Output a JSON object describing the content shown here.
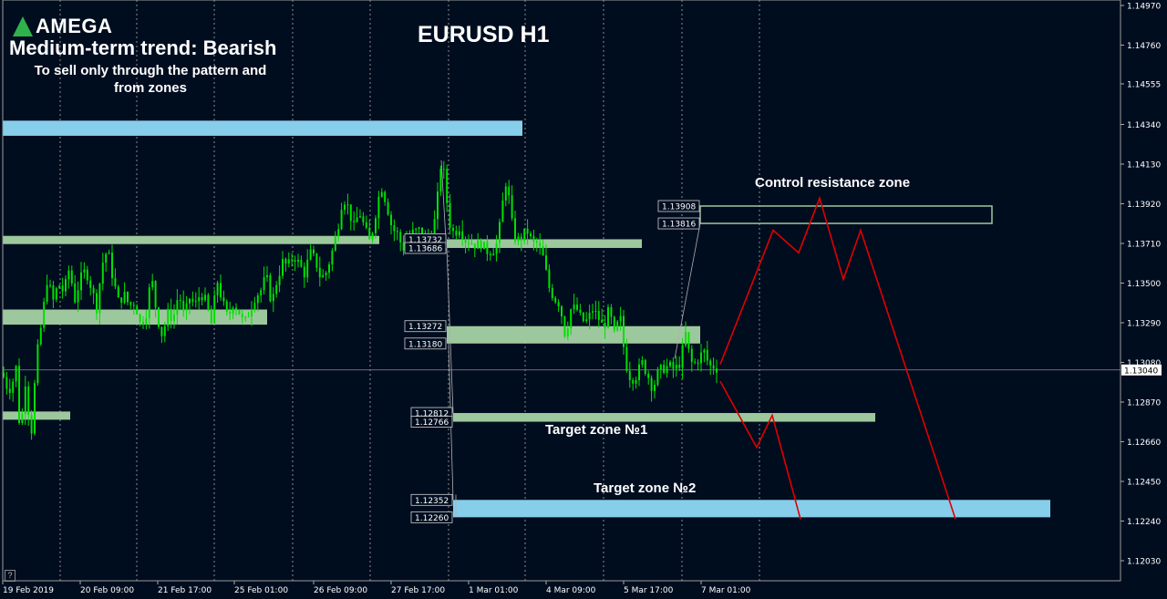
{
  "brand": "AMEGA",
  "headline": "Medium-term trend: Bearish",
  "note_line1": "To sell only through the pattern and",
  "note_line2": "from zones",
  "chart_title": "EURUSD H1",
  "zone_labels": {
    "control": "Control resistance zone",
    "target1": "Target zone №1",
    "target2": "Target zone №2"
  },
  "colors": {
    "background": "#000d1f",
    "candle": "#00e000",
    "zone_blue": "#87ceeb",
    "zone_green": "#9dc89d",
    "forecast": "#e00000",
    "grid": "#8a8a8a"
  },
  "chart_data": {
    "type": "candlestick",
    "symbol": "EURUSD",
    "timeframe": "H1",
    "ylim": [
      1.1195,
      1.1502
    ],
    "y_ticks": [
      "1.14970",
      "1.14760",
      "1.14555",
      "1.14340",
      "1.14130",
      "1.13920",
      "1.13710",
      "1.13500",
      "1.13290",
      "1.13080",
      "1.12870",
      "1.12660",
      "1.12450",
      "1.12240",
      "1.12030"
    ],
    "x_ticks": [
      "19 Feb 2019",
      "20 Feb 09:00",
      "21 Feb 17:00",
      "25 Feb 01:00",
      "26 Feb 09:00",
      "27 Feb 17:00",
      "1 Mar 01:00",
      "4 Mar 09:00",
      "5 Mar 17:00",
      "7 Mar 01:00"
    ],
    "current_price": "1.13040",
    "price_path": [
      [
        0,
        1.1309
      ],
      [
        6,
        1.1296
      ],
      [
        12,
        1.1294
      ],
      [
        18,
        1.1306
      ],
      [
        22,
        1.1268
      ],
      [
        28,
        1.1299
      ],
      [
        34,
        1.1268
      ],
      [
        40,
        1.131
      ],
      [
        46,
        1.133
      ],
      [
        52,
        1.1353
      ],
      [
        58,
        1.134
      ],
      [
        64,
        1.135
      ],
      [
        70,
        1.1345
      ],
      [
        76,
        1.1358
      ],
      [
        82,
        1.1341
      ],
      [
        88,
        1.1352
      ],
      [
        94,
        1.1357
      ],
      [
        100,
        1.1348
      ],
      [
        106,
        1.1337
      ],
      [
        112,
        1.136
      ],
      [
        118,
        1.1368
      ],
      [
        124,
        1.1352
      ],
      [
        130,
        1.134
      ],
      [
        136,
        1.1344
      ],
      [
        142,
        1.1338
      ],
      [
        148,
        1.134
      ],
      [
        154,
        1.1328
      ],
      [
        160,
        1.1333
      ],
      [
        166,
        1.1354
      ],
      [
        172,
        1.1333
      ],
      [
        178,
        1.1322
      ],
      [
        184,
        1.1334
      ],
      [
        190,
        1.1331
      ],
      [
        196,
        1.1345
      ],
      [
        202,
        1.1332
      ],
      [
        208,
        1.1342
      ],
      [
        214,
        1.1338
      ],
      [
        220,
        1.1345
      ],
      [
        226,
        1.134
      ],
      [
        232,
        1.1328
      ],
      [
        238,
        1.1352
      ],
      [
        244,
        1.134
      ],
      [
        250,
        1.1331
      ],
      [
        256,
        1.134
      ],
      [
        262,
        1.1335
      ],
      [
        268,
        1.1328
      ],
      [
        274,
        1.1336
      ],
      [
        280,
        1.1343
      ],
      [
        286,
        1.1346
      ],
      [
        292,
        1.1354
      ],
      [
        298,
        1.1339
      ],
      [
        304,
        1.1352
      ],
      [
        310,
        1.1361
      ],
      [
        316,
        1.1359
      ],
      [
        322,
        1.1365
      ],
      [
        328,
        1.136
      ],
      [
        334,
        1.1355
      ],
      [
        340,
        1.1366
      ],
      [
        346,
        1.1362
      ],
      [
        352,
        1.1352
      ],
      [
        358,
        1.1356
      ],
      [
        364,
        1.1366
      ],
      [
        370,
        1.1378
      ],
      [
        376,
        1.1396
      ],
      [
        382,
        1.139
      ],
      [
        388,
        1.1379
      ],
      [
        394,
        1.1388
      ],
      [
        400,
        1.1379
      ],
      [
        406,
        1.1371
      ],
      [
        412,
        1.1387
      ],
      [
        418,
        1.1402
      ],
      [
        424,
        1.1392
      ],
      [
        430,
        1.1379
      ],
      [
        436,
        1.1376
      ],
      [
        442,
        1.1368
      ],
      [
        448,
        1.1375
      ],
      [
        454,
        1.1377
      ],
      [
        460,
        1.1378
      ],
      [
        466,
        1.1375
      ],
      [
        472,
        1.1372
      ],
      [
        478,
        1.1386
      ],
      [
        484,
        1.1415
      ],
      [
        488,
        1.1405
      ],
      [
        492,
        1.1383
      ],
      [
        498,
        1.1376
      ],
      [
        504,
        1.138
      ],
      [
        510,
        1.1373
      ],
      [
        516,
        1.1372
      ],
      [
        522,
        1.137
      ],
      [
        528,
        1.1371
      ],
      [
        534,
        1.1367
      ],
      [
        540,
        1.1367
      ],
      [
        546,
        1.1372
      ],
      [
        552,
        1.1395
      ],
      [
        556,
        1.1407
      ],
      [
        560,
        1.1385
      ],
      [
        566,
        1.1372
      ],
      [
        572,
        1.1374
      ],
      [
        578,
        1.1378
      ],
      [
        584,
        1.1371
      ],
      [
        590,
        1.1371
      ],
      [
        596,
        1.1363
      ],
      [
        602,
        1.1348
      ],
      [
        608,
        1.1342
      ],
      [
        614,
        1.1339
      ],
      [
        620,
        1.1322
      ],
      [
        626,
        1.1336
      ],
      [
        632,
        1.1337
      ],
      [
        638,
        1.133
      ],
      [
        644,
        1.133
      ],
      [
        650,
        1.1336
      ],
      [
        656,
        1.1332
      ],
      [
        662,
        1.1326
      ],
      [
        668,
        1.1336
      ],
      [
        674,
        1.1322
      ],
      [
        680,
        1.1333
      ],
      [
        686,
        1.1308
      ],
      [
        692,
        1.1299
      ],
      [
        698,
        1.1301
      ],
      [
        704,
        1.1308
      ],
      [
        710,
        1.1302
      ],
      [
        716,
        1.1294
      ],
      [
        722,
        1.1303
      ],
      [
        728,
        1.1305
      ],
      [
        734,
        1.1306
      ],
      [
        740,
        1.1304
      ],
      [
        746,
        1.1308
      ],
      [
        752,
        1.1323
      ],
      [
        756,
        1.1312
      ],
      [
        760,
        1.1306
      ],
      [
        766,
        1.131
      ],
      [
        772,
        1.1314
      ],
      [
        778,
        1.1306
      ],
      [
        784,
        1.1306
      ],
      [
        788,
        1.1304
      ]
    ],
    "zones": [
      {
        "name": "upper-blue-zone",
        "y_top": 1.1436,
        "y_bottom": 1.1428,
        "x_from": 3,
        "x_to": 573,
        "color": "blue"
      },
      {
        "name": "left-top-green-zone",
        "y_top": 1.1375,
        "y_bottom": 1.1371,
        "x_from": 3,
        "x_to": 416,
        "color": "green"
      },
      {
        "name": "mid-green-zone",
        "y_top": 1.13732,
        "y_bottom": 1.13686,
        "x_from": 490,
        "x_to": 704,
        "color": "green"
      },
      {
        "name": "left-mid-green-zone",
        "y_top": 1.1336,
        "y_bottom": 1.1328,
        "x_from": 3,
        "x_to": 293,
        "color": "green"
      },
      {
        "name": "right-green-zone",
        "y_top": 1.13272,
        "y_bottom": 1.1318,
        "x_from": 490,
        "x_to": 768,
        "color": "green"
      },
      {
        "name": "left-low-green-zone",
        "y_top": 1.1282,
        "y_bottom": 1.1278,
        "x_from": 3,
        "x_to": 77,
        "color": "green"
      },
      {
        "name": "target-zone-1",
        "y_top": 1.12812,
        "y_bottom": 1.12766,
        "x_from": 497,
        "x_to": 960,
        "color": "green"
      },
      {
        "name": "target-zone-2",
        "y_top": 1.12352,
        "y_bottom": 1.1226,
        "x_from": 497,
        "x_to": 1152,
        "color": "blue"
      },
      {
        "name": "control-resistance-zone",
        "y_top": 1.13908,
        "y_bottom": 1.13816,
        "x_from": 768,
        "x_to": 1088,
        "color": "outline"
      }
    ],
    "price_labels": [
      {
        "text": "1.13732",
        "value": 1.13732,
        "x_right": 489
      },
      {
        "text": "1.13686",
        "value": 1.13686,
        "x_right": 489
      },
      {
        "text": "1.13272",
        "value": 1.13272,
        "x_right": 489
      },
      {
        "text": "1.13180",
        "value": 1.1318,
        "x_right": 489
      },
      {
        "text": "1.12812",
        "value": 1.12812,
        "x_right": 496
      },
      {
        "text": "1.12766",
        "value": 1.12766,
        "x_right": 496
      },
      {
        "text": "1.12352",
        "value": 1.12352,
        "x_right": 496
      },
      {
        "text": "1.12260",
        "value": 1.1226,
        "x_right": 496
      },
      {
        "text": "1.13908",
        "value": 1.13908,
        "x_right": 767
      },
      {
        "text": "1.13816",
        "value": 1.13816,
        "x_right": 767
      }
    ],
    "forecast_up": [
      [
        790,
        1.1307
      ],
      [
        848,
        1.1378
      ],
      [
        876,
        1.1366
      ],
      [
        899,
        1.1395
      ],
      [
        925,
        1.1352
      ],
      [
        944,
        1.1378
      ],
      [
        1048,
        1.1225
      ]
    ],
    "forecast_down": [
      [
        790,
        1.1298
      ],
      [
        830,
        1.1263
      ],
      [
        847,
        1.128
      ],
      [
        878,
        1.1225
      ]
    ]
  }
}
